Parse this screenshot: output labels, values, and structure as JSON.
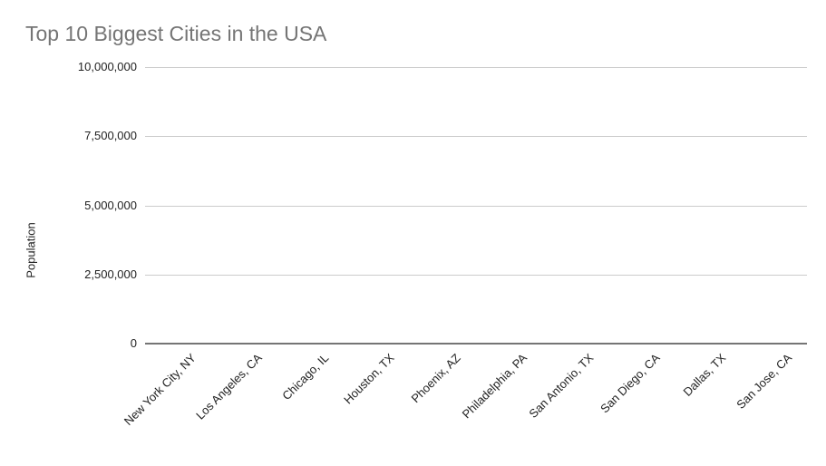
{
  "chart_data": {
    "type": "bar",
    "title": "Top 10 Biggest Cities in the USA",
    "xlabel": "",
    "ylabel": "Population",
    "categories": [
      "New York City, NY",
      "Los Angeles, CA",
      "Chicago, IL",
      "Houston, TX",
      "Phoenix, AZ",
      "Philadelphia, PA",
      "San Antonio, TX",
      "San Diego, CA",
      "Dallas, TX",
      "San Jose, CA"
    ],
    "values": [
      0,
      0,
      0,
      0,
      0,
      0,
      0,
      0,
      0,
      0
    ],
    "bars_visible": false,
    "ylim": [
      0,
      10000000
    ],
    "y_ticks": [
      {
        "value": 10000000,
        "label": "10,000,000"
      },
      {
        "value": 7500000,
        "label": "7,500,000"
      },
      {
        "value": 5000000,
        "label": "5,000,000"
      },
      {
        "value": 2500000,
        "label": "2,500,000"
      },
      {
        "value": 0,
        "label": "0"
      }
    ],
    "grid": true,
    "legend_position": "none",
    "colors": {
      "title": "#757575",
      "axis_label": "#222222",
      "gridline": "#cccccc",
      "baseline": "#757575",
      "background": "#ffffff"
    }
  }
}
